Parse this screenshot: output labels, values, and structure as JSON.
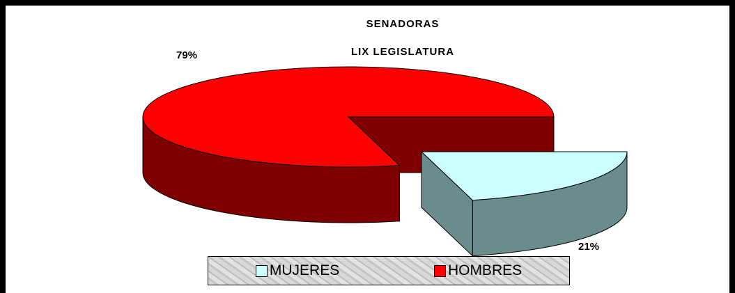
{
  "chart_data": {
    "type": "pie",
    "title": "SENADORAS",
    "subtitle": "LIX LEGISLATURA",
    "categories": [
      "MUJERES",
      "HOMBRES"
    ],
    "values": [
      21,
      79
    ],
    "value_labels": [
      "21%",
      "79%"
    ],
    "colors": [
      "#ccffff",
      "#ff0000"
    ],
    "legend": "bottom"
  }
}
